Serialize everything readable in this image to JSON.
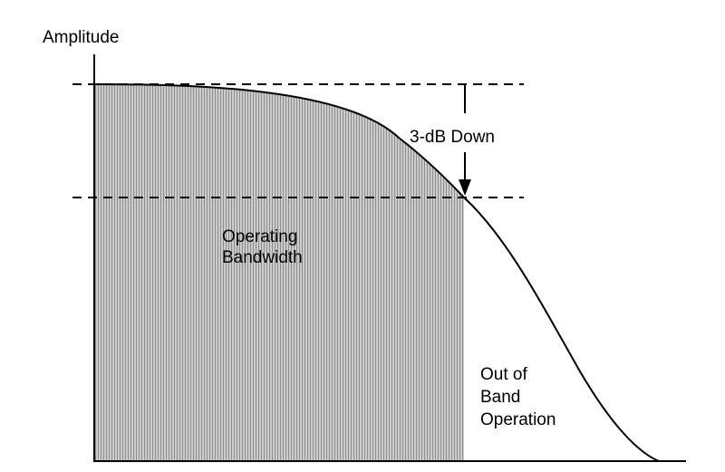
{
  "diagram": {
    "y_axis_label": "Amplitude",
    "annotation_label": "3-dB Down",
    "region_inside": {
      "line1": "Operating",
      "line2": "Bandwidth"
    },
    "region_outside": {
      "line1": "Out of",
      "line2": "Band",
      "line3": "Operation"
    },
    "colors": {
      "fill": "#b3b3b3",
      "curve": "#000000",
      "reference_lines": "#000000",
      "background": "#ffffff"
    }
  }
}
